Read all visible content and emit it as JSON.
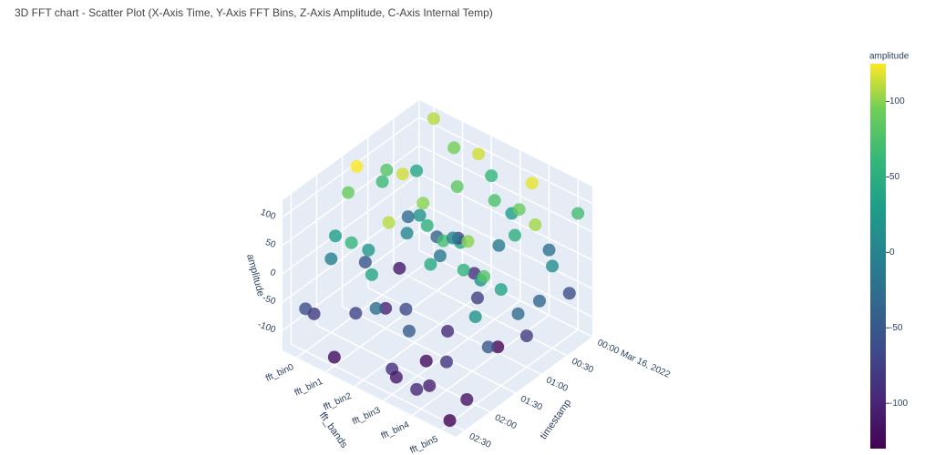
{
  "chart_data": {
    "type": "scatter3d",
    "title": "3D FFT chart - Scatter Plot (X-Axis Time, Y-Axis FFT Bins, Z-Axis Amplitude, C-Axis Internal Temp)",
    "xlabel": "timestamp",
    "ylabel": "fft_bands",
    "zlabel": "amplitude",
    "xlim": [
      "2022-03-16 00:00",
      "2022-03-16 02:40"
    ],
    "xticks": [
      {
        "value": "2022-03-16 00:00",
        "label": "00:00 Mar 16, 2022"
      },
      {
        "value": "2022-03-16 00:30",
        "label": "00:30"
      },
      {
        "value": "2022-03-16 01:00",
        "label": "01:00"
      },
      {
        "value": "2022-03-16 01:30",
        "label": "01:30"
      },
      {
        "value": "2022-03-16 02:00",
        "label": "02:00"
      },
      {
        "value": "2022-03-16 02:30",
        "label": "02:30"
      }
    ],
    "ycategories": [
      "fft_bin0",
      "fft_bin1",
      "fft_bin2",
      "fft_bin3",
      "fft_bin4",
      "fft_bin5"
    ],
    "zlim": [
      -135,
      130
    ],
    "zticks": [
      -100,
      -50,
      0,
      50,
      100
    ],
    "grid": true,
    "colorscale": "viridis",
    "colorbar": {
      "title": "amplitude",
      "lim": [
        -130,
        125
      ],
      "ticks": [
        -100,
        -50,
        0,
        50,
        100
      ]
    },
    "x": [
      "2022-03-16 00:00",
      "2022-03-16 00:00",
      "2022-03-16 00:00",
      "2022-03-16 00:10",
      "2022-03-16 00:10",
      "2022-03-16 00:10",
      "2022-03-16 00:20",
      "2022-03-16 00:20",
      "2022-03-16 00:20",
      "2022-03-16 00:30",
      "2022-03-16 00:30",
      "2022-03-16 00:30",
      "2022-03-16 00:40",
      "2022-03-16 00:40",
      "2022-03-16 00:40",
      "2022-03-16 00:50",
      "2022-03-16 00:50",
      "2022-03-16 00:50",
      "2022-03-16 01:00",
      "2022-03-16 01:00",
      "2022-03-16 01:00",
      "2022-03-16 01:10",
      "2022-03-16 01:10",
      "2022-03-16 01:10",
      "2022-03-16 01:20",
      "2022-03-16 01:20",
      "2022-03-16 01:20",
      "2022-03-16 01:30",
      "2022-03-16 01:30",
      "2022-03-16 01:30",
      "2022-03-16 01:40",
      "2022-03-16 01:40",
      "2022-03-16 01:40",
      "2022-03-16 01:50",
      "2022-03-16 01:50",
      "2022-03-16 01:50",
      "2022-03-16 02:00",
      "2022-03-16 02:00",
      "2022-03-16 02:00",
      "2022-03-16 02:10",
      "2022-03-16 02:10",
      "2022-03-16 02:10",
      "2022-03-16 02:20",
      "2022-03-16 02:20",
      "2022-03-16 02:20",
      "2022-03-16 02:30",
      "2022-03-16 02:30",
      "2022-03-16 02:30",
      "2022-03-16 00:05",
      "2022-03-16 00:15",
      "2022-03-16 00:25",
      "2022-03-16 00:35",
      "2022-03-16 00:45",
      "2022-03-16 00:55",
      "2022-03-16 01:05",
      "2022-03-16 01:15",
      "2022-03-16 01:25",
      "2022-03-16 01:35",
      "2022-03-16 01:45",
      "2022-03-16 01:55",
      "2022-03-16 02:05",
      "2022-03-16 02:15",
      "2022-03-16 02:25",
      "2022-03-16 02:35",
      "2022-03-16 00:00",
      "2022-03-16 01:00",
      "2022-03-16 02:00",
      "2022-03-16 00:30",
      "2022-03-16 01:30",
      "2022-03-16 02:30",
      "2022-03-16 00:45",
      "2022-03-16 01:45"
    ],
    "y": [
      "fft_bin0",
      "fft_bin2",
      "fft_bin4",
      "fft_bin1",
      "fft_bin3",
      "fft_bin5",
      "fft_bin0",
      "fft_bin2",
      "fft_bin4",
      "fft_bin1",
      "fft_bin3",
      "fft_bin5",
      "fft_bin0",
      "fft_bin2",
      "fft_bin4",
      "fft_bin1",
      "fft_bin3",
      "fft_bin5",
      "fft_bin0",
      "fft_bin2",
      "fft_bin4",
      "fft_bin1",
      "fft_bin3",
      "fft_bin5",
      "fft_bin0",
      "fft_bin2",
      "fft_bin4",
      "fft_bin1",
      "fft_bin3",
      "fft_bin5",
      "fft_bin0",
      "fft_bin2",
      "fft_bin4",
      "fft_bin1",
      "fft_bin3",
      "fft_bin5",
      "fft_bin0",
      "fft_bin2",
      "fft_bin4",
      "fft_bin1",
      "fft_bin3",
      "fft_bin5",
      "fft_bin0",
      "fft_bin2",
      "fft_bin4",
      "fft_bin1",
      "fft_bin3",
      "fft_bin5",
      "fft_bin1",
      "fft_bin2",
      "fft_bin3",
      "fft_bin4",
      "fft_bin5",
      "fft_bin0",
      "fft_bin1",
      "fft_bin2",
      "fft_bin3",
      "fft_bin4",
      "fft_bin5",
      "fft_bin0",
      "fft_bin1",
      "fft_bin2",
      "fft_bin3",
      "fft_bin4",
      "fft_bin5",
      "fft_bin5",
      "fft_bin5",
      "fft_bin0",
      "fft_bin0",
      "fft_bin0",
      "fft_bin2",
      "fft_bin3"
    ],
    "z": [
      110,
      60,
      -20,
      95,
      30,
      -60,
      40,
      -90,
      120,
      -40,
      75,
      10,
      -110,
      85,
      50,
      20,
      -75,
      105,
      65,
      -15,
      -125,
      115,
      45,
      -30,
      -55,
      100,
      15,
      -100,
      70,
      35,
      90,
      -65,
      55,
      25,
      -120,
      80,
      -5,
      110,
      -85,
      60,
      -45,
      -115,
      -80,
      40,
      -105,
      -120,
      -90,
      -130,
      -70,
      115,
      -10,
      90,
      -35,
      80,
      5,
      55,
      -95,
      100,
      -50,
      30,
      -70,
      -25,
      -110,
      -95,
      70,
      -80,
      20,
      -30,
      125,
      -60,
      0,
      45
    ]
  }
}
